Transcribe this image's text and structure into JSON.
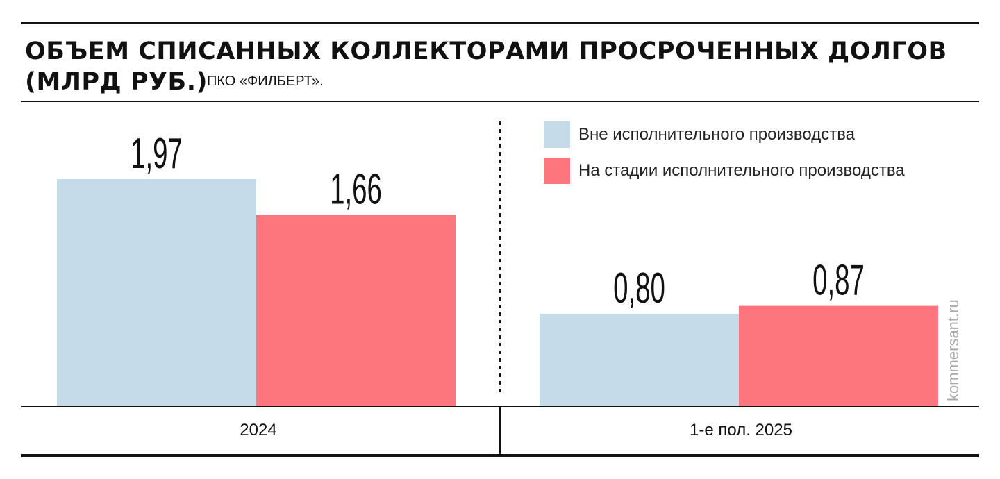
{
  "header": {
    "title_line1": "ОБЪЕМ СПИСАННЫХ КОЛЛЕКТОРАМИ ПРОСРОЧЕННЫХ ДОЛГОВ",
    "title_line2": "(МЛРД РУБ.)",
    "subtitle": "ПКО «ФИЛБЕРТ»."
  },
  "source": "kommersant.ru",
  "chart_data": {
    "type": "bar",
    "categories": [
      "2024",
      "1-е пол. 2025"
    ],
    "series": [
      {
        "name": "Вне исполнительного производства",
        "values": [
          1.97,
          0.8
        ],
        "labels": [
          "1,97",
          "0,80"
        ],
        "color": "#c6dbea"
      },
      {
        "name": "На стадии исполнительного производства",
        "values": [
          1.66,
          0.87
        ],
        "labels": [
          "1,66",
          "0,87"
        ],
        "color": "#fe767d"
      }
    ],
    "ylim": [
      0,
      1.97
    ],
    "grid": false,
    "legend_position": "top-right"
  }
}
